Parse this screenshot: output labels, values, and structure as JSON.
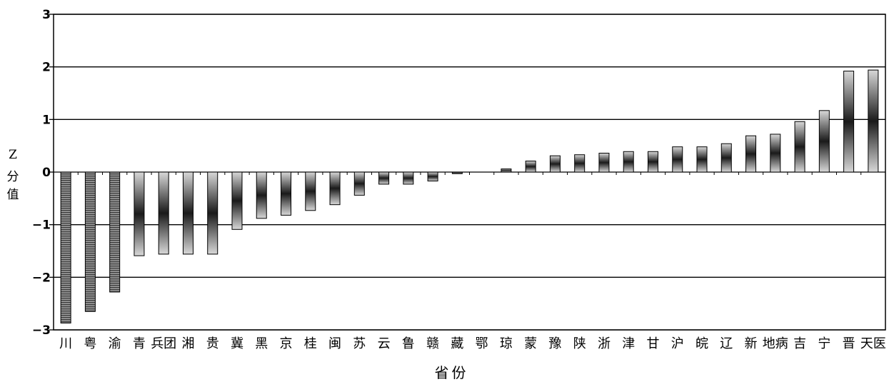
{
  "chart_data": {
    "type": "bar",
    "title": "",
    "xlabel": "省份",
    "ylabel": "Z分值",
    "ylim": [
      -3,
      3
    ],
    "yticks": [
      3,
      2,
      1,
      0,
      -1,
      -2,
      -3
    ],
    "grid": true,
    "categories": [
      "川",
      "粤",
      "渝",
      "青",
      "兵团",
      "湘",
      "贵",
      "冀",
      "黑",
      "京",
      "桂",
      "闽",
      "苏",
      "云",
      "鲁",
      "赣",
      "藏",
      "鄂",
      "琼",
      "蒙",
      "豫",
      "陕",
      "浙",
      "津",
      "甘",
      "沪",
      "皖",
      "辽",
      "新",
      "地病",
      "吉",
      "宁",
      "晋",
      "天医"
    ],
    "values": [
      -2.87,
      -2.65,
      -2.28,
      -1.59,
      -1.56,
      -1.56,
      -1.56,
      -1.09,
      -0.88,
      -0.82,
      -0.73,
      -0.62,
      -0.44,
      -0.23,
      -0.23,
      -0.17,
      -0.03,
      0,
      0.06,
      0.21,
      0.31,
      0.33,
      0.36,
      0.39,
      0.39,
      0.48,
      0.48,
      0.54,
      0.69,
      0.72,
      0.96,
      1.17,
      1.92,
      1.94
    ],
    "bar_styles": [
      "striped",
      "striped",
      "striped",
      "gradient",
      "gradient",
      "gradient",
      "gradient",
      "gradient",
      "gradient",
      "gradient",
      "gradient",
      "gradient",
      "gradient",
      "gradient",
      "gradient",
      "gradient",
      "gradient",
      "gradient",
      "gradient",
      "gradient",
      "gradient",
      "gradient",
      "gradient",
      "gradient",
      "gradient",
      "gradient",
      "gradient",
      "gradient",
      "gradient",
      "gradient",
      "gradient",
      "gradient",
      "gradient",
      "gradient"
    ]
  },
  "labels": {
    "ylabel_chars": [
      "Z",
      "分",
      "值"
    ],
    "xlabel": "省份"
  }
}
